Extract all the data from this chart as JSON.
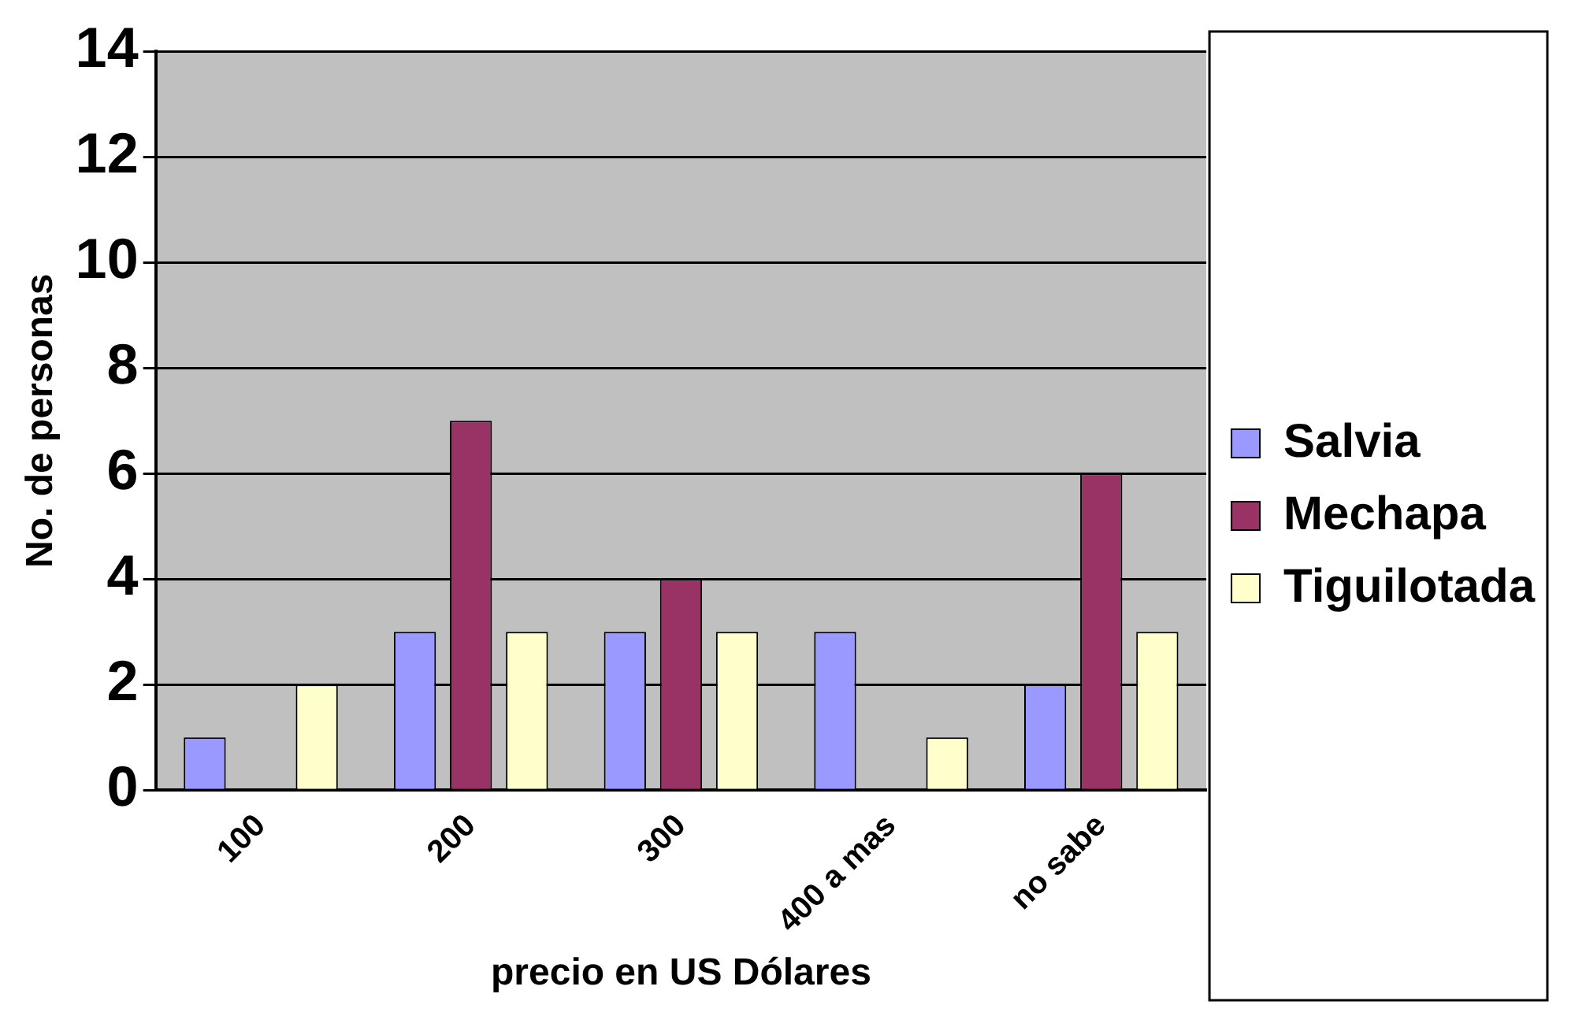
{
  "chart_data": {
    "type": "bar",
    "xlabel": "precio en US Dólares",
    "ylabel": "No. de personas",
    "categories": [
      "100",
      "200",
      "300",
      "400 a mas",
      "no sabe"
    ],
    "series": [
      {
        "name": "Salvia",
        "color": "#9999ff",
        "values": [
          1,
          3,
          3,
          3,
          2
        ]
      },
      {
        "name": "Mechapa",
        "color": "#993366",
        "values": [
          0,
          7,
          4,
          0,
          6
        ]
      },
      {
        "name": "Tiguilotada",
        "color": "#ffffcc",
        "values": [
          2,
          3,
          3,
          1,
          3
        ]
      }
    ],
    "ylim": [
      0,
      14
    ],
    "yticks": [
      0,
      2,
      4,
      6,
      8,
      10,
      12,
      14
    ],
    "grid": "y",
    "legend": "right"
  }
}
